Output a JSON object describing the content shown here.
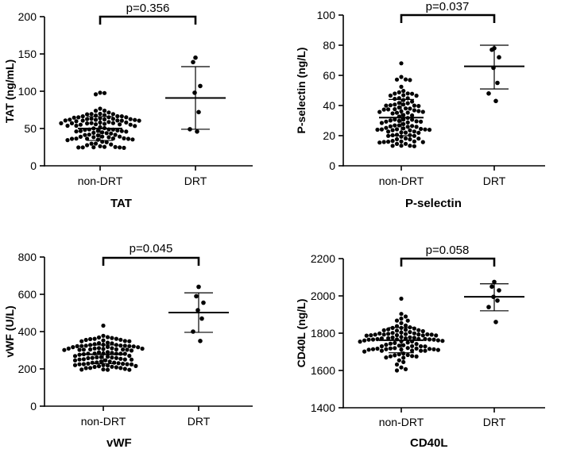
{
  "chart_data": [
    {
      "type": "scatter",
      "title": "TAT",
      "ylabel": "TAT (ng/mL)",
      "categories": [
        "non-DRT",
        "DRT"
      ],
      "ylim": [
        0,
        200
      ],
      "yticks": [
        0,
        50,
        100,
        150,
        200
      ],
      "pvalue": "p=0.356",
      "groups": [
        {
          "name": "non-DRT",
          "n": 100,
          "mean": 50,
          "sd_low": 34,
          "sd_high": 66,
          "min": 24,
          "max": 98,
          "spread_sd": 15,
          "seed": 11
        },
        {
          "name": "DRT",
          "mean": 91,
          "sd_low": 49,
          "sd_high": 133,
          "values": [
            145,
            139,
            107,
            98,
            72,
            49,
            46
          ]
        }
      ]
    },
    {
      "type": "scatter",
      "title": "P-selectin",
      "ylabel": "P-selectin (ng/L)",
      "categories": [
        "non-DRT",
        "DRT"
      ],
      "ylim": [
        0,
        100
      ],
      "yticks": [
        0,
        20,
        40,
        60,
        80,
        100
      ],
      "pvalue": "p=0.037",
      "groups": [
        {
          "name": "non-DRT",
          "n": 100,
          "mean": 32,
          "sd_low": 20,
          "sd_high": 44,
          "min": 13,
          "max": 68,
          "spread_sd": 11,
          "seed": 23
        },
        {
          "name": "DRT",
          "mean": 66,
          "sd_low": 51,
          "sd_high": 80,
          "values": [
            78,
            77,
            72,
            65,
            55,
            48,
            43
          ]
        }
      ]
    },
    {
      "type": "scatter",
      "title": "vWF",
      "ylabel": "vWF (U/L)",
      "categories": [
        "non-DRT",
        "DRT"
      ],
      "ylim": [
        0,
        800
      ],
      "yticks": [
        0,
        200,
        400,
        600,
        800
      ],
      "pvalue": "p=0.045",
      "groups": [
        {
          "name": "non-DRT",
          "n": 100,
          "mean": 278,
          "sd_low": 228,
          "sd_high": 328,
          "min": 195,
          "max": 432,
          "spread_sd": 48,
          "seed": 37
        },
        {
          "name": "DRT",
          "mean": 502,
          "sd_low": 396,
          "sd_high": 608,
          "values": [
            640,
            590,
            555,
            515,
            470,
            400,
            350
          ]
        }
      ]
    },
    {
      "type": "scatter",
      "title": "CD40L",
      "ylabel": "CD40L (ng/L)",
      "categories": [
        "non-DRT",
        "DRT"
      ],
      "ylim": [
        1400,
        2200
      ],
      "yticks": [
        1400,
        1600,
        1800,
        2000,
        2200
      ],
      "pvalue": "p=0.058",
      "groups": [
        {
          "name": "non-DRT",
          "n": 100,
          "mean": 1762,
          "sd_low": 1695,
          "sd_high": 1830,
          "min": 1600,
          "max": 1985,
          "spread_sd": 65,
          "seed": 53
        },
        {
          "name": "DRT",
          "mean": 1995,
          "sd_low": 1920,
          "sd_high": 2065,
          "values": [
            2075,
            2050,
            2030,
            1995,
            1975,
            1940,
            1860
          ]
        }
      ]
    }
  ]
}
